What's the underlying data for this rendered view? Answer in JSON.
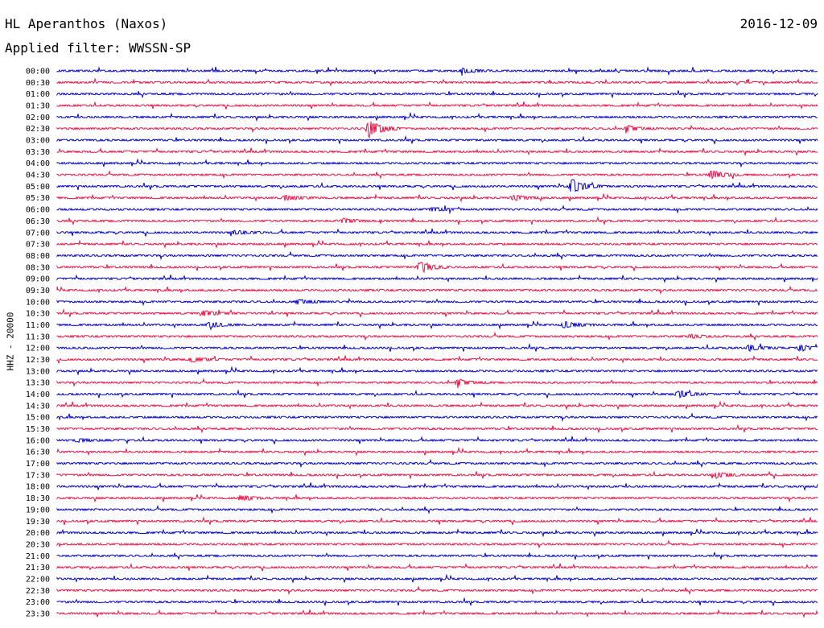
{
  "header": {
    "station": "HL Aperanthos (Naxos)",
    "date": "2016-12-09",
    "filter": "Applied filter: WWSSN-SP",
    "channel": "HHZ - 20000"
  },
  "colors": {
    "even_hour": "#0000cc",
    "half_hour": "#ee1144"
  },
  "chart_data": {
    "type": "helicorder",
    "title": "HL Aperanthos (Naxos)",
    "date": "2016-12-09",
    "ylabel": "HHZ - 20000",
    "tick_labels": [
      "00:00",
      "00:30",
      "01:00",
      "01:30",
      "02:00",
      "02:30",
      "03:00",
      "03:30",
      "04:00",
      "04:30",
      "05:00",
      "05:30",
      "06:00",
      "06:30",
      "07:00",
      "07:30",
      "08:00",
      "08:30",
      "09:00",
      "09:30",
      "10:00",
      "10:30",
      "11:00",
      "11:30",
      "12:00",
      "12:30",
      "13:00",
      "13:30",
      "14:00",
      "14:30",
      "15:00",
      "15:30",
      "16:00",
      "16:30",
      "17:00",
      "17:30",
      "18:00",
      "18:30",
      "19:00",
      "19:30",
      "20:00",
      "20:30",
      "21:00",
      "21:30",
      "22:00",
      "22:30",
      "23:00",
      "23:30"
    ],
    "trace_minutes": 30,
    "events": [
      {
        "trace": "00:00",
        "minute": 16.0,
        "amp": 0.25
      },
      {
        "trace": "02:30",
        "minute": 12.3,
        "amp": 1.0
      },
      {
        "trace": "02:30",
        "minute": 22.5,
        "amp": 0.3
      },
      {
        "trace": "04:30",
        "minute": 25.8,
        "amp": 0.5
      },
      {
        "trace": "05:00",
        "minute": 20.3,
        "amp": 0.8
      },
      {
        "trace": "05:30",
        "minute": 9.0,
        "amp": 0.3
      },
      {
        "trace": "05:30",
        "minute": 18.0,
        "amp": 0.3
      },
      {
        "trace": "06:00",
        "minute": 14.8,
        "amp": 0.2
      },
      {
        "trace": "06:30",
        "minute": 11.3,
        "amp": 0.25
      },
      {
        "trace": "07:00",
        "minute": 7.0,
        "amp": 0.2
      },
      {
        "trace": "08:30",
        "minute": 14.3,
        "amp": 0.7
      },
      {
        "trace": "10:00",
        "minute": 9.5,
        "amp": 0.25
      },
      {
        "trace": "10:30",
        "minute": 5.8,
        "amp": 0.3
      },
      {
        "trace": "11:00",
        "minute": 6.0,
        "amp": 0.3
      },
      {
        "trace": "11:00",
        "minute": 20.0,
        "amp": 0.35
      },
      {
        "trace": "11:30",
        "minute": 25.0,
        "amp": 0.2
      },
      {
        "trace": "12:00",
        "minute": 27.3,
        "amp": 0.3
      },
      {
        "trace": "12:00",
        "minute": 29.3,
        "amp": 0.35
      },
      {
        "trace": "12:30",
        "minute": 5.3,
        "amp": 0.25
      },
      {
        "trace": "13:30",
        "minute": 15.8,
        "amp": 0.35
      },
      {
        "trace": "14:00",
        "minute": 24.5,
        "amp": 0.4
      },
      {
        "trace": "16:00",
        "minute": 0.8,
        "amp": 0.2
      },
      {
        "trace": "17:30",
        "minute": 26.0,
        "amp": 0.3
      },
      {
        "trace": "18:30",
        "minute": 7.3,
        "amp": 0.25
      }
    ]
  }
}
